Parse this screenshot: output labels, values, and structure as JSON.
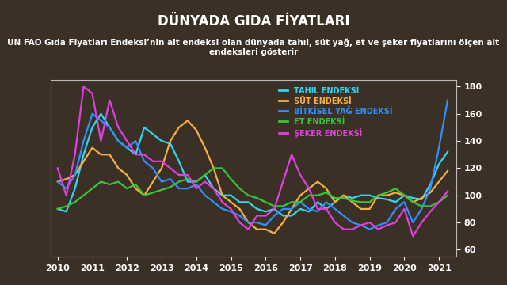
{
  "chart_data": {
    "type": "line",
    "title": "DÜNYADA GIDA FİYATLARI",
    "subtitle": "UN FAO Gıda Fiyatları Endeksi’nin alt endeksi olan dünyada tahıl, süt yağ, et ve şeker fiyatlarını ölçen alt endeksleri gösterir",
    "x": [
      2010.0,
      2010.25,
      2010.5,
      2010.75,
      2011.0,
      2011.25,
      2011.5,
      2011.75,
      2012.0,
      2012.25,
      2012.5,
      2012.75,
      2013.0,
      2013.25,
      2013.5,
      2013.75,
      2014.0,
      2014.25,
      2014.5,
      2014.75,
      2015.0,
      2015.25,
      2015.5,
      2015.75,
      2016.0,
      2016.25,
      2016.5,
      2016.75,
      2017.0,
      2017.25,
      2017.5,
      2017.75,
      2018.0,
      2018.25,
      2018.5,
      2018.75,
      2019.0,
      2019.25,
      2019.5,
      2019.75,
      2020.0,
      2020.25,
      2020.5,
      2020.75,
      2021.0,
      2021.25
    ],
    "series": [
      {
        "name": "TAHIL ENDEKSİ",
        "color": "#33d6f0",
        "values": [
          90,
          88,
          105,
          130,
          150,
          160,
          150,
          140,
          135,
          130,
          150,
          145,
          140,
          138,
          125,
          110,
          110,
          115,
          105,
          100,
          100,
          95,
          95,
          90,
          88,
          90,
          85,
          85,
          90,
          88,
          95,
          90,
          95,
          100,
          98,
          100,
          100,
          98,
          97,
          95,
          100,
          98,
          97,
          108,
          123,
          132
        ]
      },
      {
        "name": "SÜT ENDEKSİ",
        "color": "#f5b041",
        "values": [
          110,
          112,
          115,
          125,
          135,
          130,
          130,
          120,
          115,
          105,
          100,
          110,
          120,
          140,
          150,
          155,
          148,
          135,
          120,
          100,
          95,
          90,
          80,
          75,
          75,
          72,
          80,
          90,
          100,
          105,
          110,
          105,
          95,
          100,
          95,
          90,
          90,
          100,
          100,
          102,
          100,
          95,
          98,
          102,
          110,
          118
        ]
      },
      {
        "name": "BİTKİSEL YAĞ ENDEKSİ",
        "color": "#2f8fff",
        "values": [
          110,
          105,
          115,
          140,
          160,
          155,
          150,
          140,
          135,
          140,
          125,
          120,
          110,
          112,
          105,
          105,
          108,
          100,
          95,
          90,
          88,
          85,
          80,
          80,
          78,
          85,
          90,
          90,
          95,
          90,
          88,
          95,
          90,
          85,
          80,
          78,
          75,
          78,
          80,
          90,
          95,
          80,
          90,
          105,
          135,
          170
        ]
      },
      {
        "name": "ET ENDEKSİ",
        "color": "#3cc23c",
        "values": [
          90,
          92,
          95,
          100,
          105,
          110,
          108,
          110,
          105,
          108,
          100,
          102,
          104,
          106,
          110,
          112,
          110,
          115,
          120,
          120,
          112,
          105,
          100,
          98,
          95,
          92,
          92,
          95,
          95,
          100,
          100,
          102,
          98,
          98,
          96,
          95,
          95,
          100,
          102,
          105,
          100,
          95,
          92,
          92,
          95,
          100
        ]
      },
      {
        "name": "ŞEKER ENDEKSİ",
        "color": "#e040e0",
        "values": [
          120,
          100,
          130,
          180,
          175,
          140,
          170,
          150,
          140,
          130,
          130,
          125,
          125,
          120,
          115,
          115,
          105,
          110,
          105,
          95,
          90,
          80,
          75,
          85,
          85,
          90,
          110,
          130,
          115,
          105,
          90,
          90,
          80,
          75,
          75,
          78,
          80,
          75,
          78,
          80,
          90,
          70,
          80,
          88,
          95,
          103
        ]
      }
    ],
    "xlim": [
      2009.8,
      2021.5
    ],
    "xticks": [
      2010,
      2011,
      2012,
      2013,
      2014,
      2015,
      2016,
      2017,
      2018,
      2019,
      2020,
      2021
    ],
    "ylim": [
      55,
      185
    ],
    "yticks": [
      60,
      80,
      100,
      120,
      140,
      160,
      180
    ],
    "legend": "upper right"
  }
}
